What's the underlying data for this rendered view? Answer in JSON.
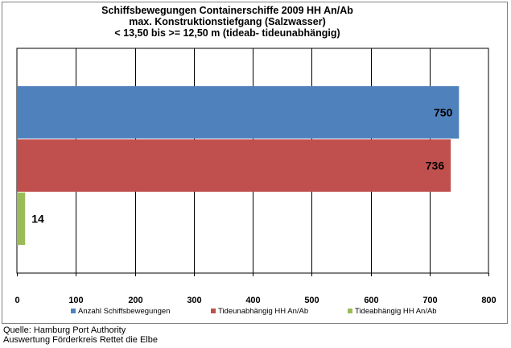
{
  "chart_data": {
    "type": "bar",
    "orientation": "horizontal",
    "title_lines": [
      "Schiffsbewegungen  Containerschiffe  2009 HH An/Ab",
      "max. Konstruktionstiefgang  (Salzwasser)",
      "< 13,50 bis >= 12,50 m (tideab-  tideunabhängig)"
    ],
    "series": [
      {
        "name": "Anzahl Schiffsbewegungen",
        "value": 750,
        "color": "#4F81BD"
      },
      {
        "name": "Tideunabhängig HH An/Ab",
        "value": 736,
        "color": "#C0504D"
      },
      {
        "name": "Tideabhängig HH An/Ab",
        "value": 14,
        "color": "#9BBB59"
      }
    ],
    "xlim": [
      0,
      800
    ],
    "x_ticks": [
      "0",
      "100",
      "200",
      "300",
      "400",
      "500",
      "600",
      "700",
      "800"
    ],
    "grid": true,
    "legend_position": "bottom"
  },
  "source": {
    "line1": "Quelle: Hamburg Port Authority",
    "line2": "Auswertung Förderkreis Rettet die Elbe"
  }
}
